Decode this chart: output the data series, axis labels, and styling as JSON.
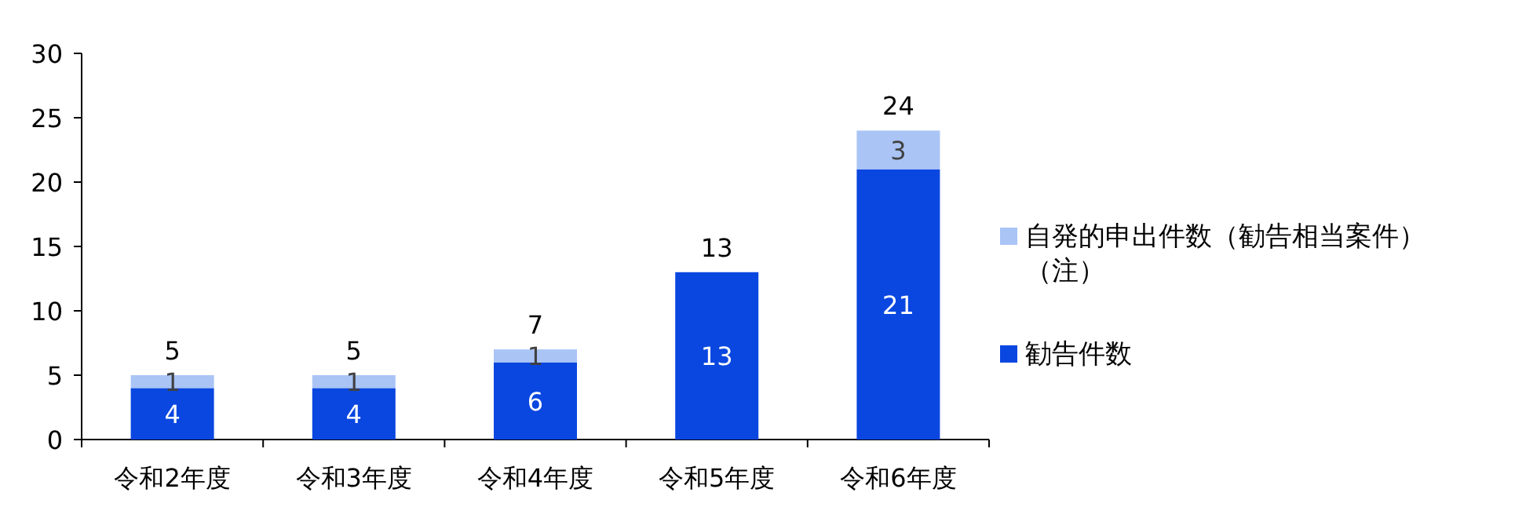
{
  "chart_data": {
    "type": "bar",
    "stacked": true,
    "categories": [
      "令和2年度",
      "令和3年度",
      "令和4年度",
      "令和5年度",
      "令和6年度"
    ],
    "series": [
      {
        "name": "勧告件数",
        "color": "#0a47e0",
        "values": [
          4,
          4,
          6,
          13,
          21
        ]
      },
      {
        "name": "自発的申出件数（勧告相当案件）（注）",
        "color": "#a9c4f5",
        "values": [
          1,
          1,
          1,
          null,
          3
        ]
      }
    ],
    "totals": [
      "5",
      "5",
      "7",
      "13",
      "24"
    ],
    "data_labels": true,
    "legend": "right",
    "ylim": [
      0,
      30
    ],
    "yticks": [
      0,
      5,
      10,
      15,
      20,
      25,
      30
    ]
  }
}
